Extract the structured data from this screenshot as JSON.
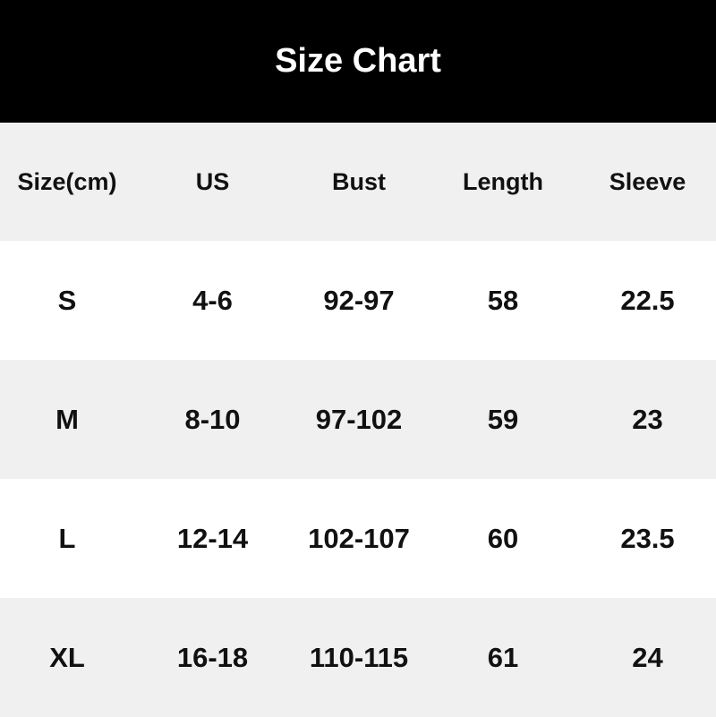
{
  "title": "Size Chart",
  "headers": [
    "Size(cm)",
    "US",
    "Bust",
    "Length",
    "Sleeve"
  ],
  "rows": [
    [
      "S",
      "4-6",
      "92-97",
      "58",
      "22.5"
    ],
    [
      "M",
      "8-10",
      "97-102",
      "59",
      "23"
    ],
    [
      "L",
      "12-14",
      "102-107",
      "60",
      "23.5"
    ],
    [
      "XL",
      "16-18",
      "110-115",
      "61",
      "24"
    ]
  ]
}
